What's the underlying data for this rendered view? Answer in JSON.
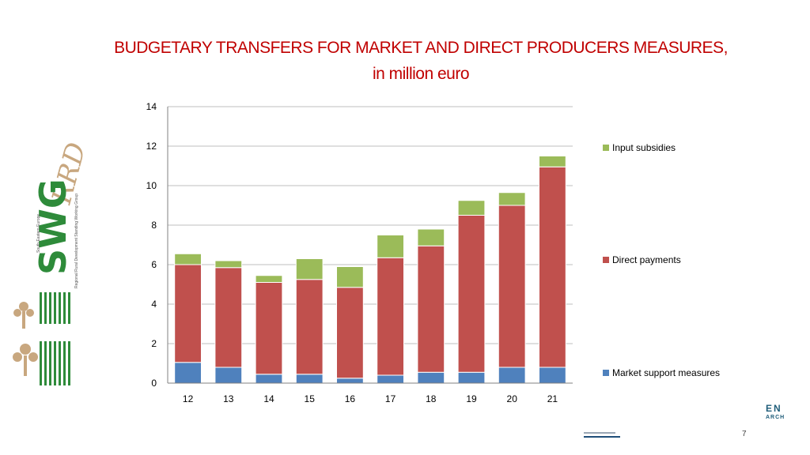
{
  "slide": {
    "title_line1": "BUDGETARY TRANSFERS FOR MARKET AND DIRECT PRODUCERS MEASURES,",
    "title_line2": "in million euro",
    "page_number": "7",
    "corner_logo_line1": "EN",
    "corner_logo_line2": "ARCH",
    "logo_text": {
      "main": "SWG",
      "script": "RRD",
      "vertical_line1": "South Eastern Europe",
      "vertical_line2": "Regional Rural Development Standing Working Group"
    }
  },
  "chart_data": {
    "type": "bar",
    "stacked": true,
    "categories": [
      "12",
      "13",
      "14",
      "15",
      "16",
      "17",
      "18",
      "19",
      "20",
      "21"
    ],
    "series": [
      {
        "name": "Market support measures",
        "color": "#4f81bd",
        "values": [
          1.05,
          0.8,
          0.45,
          0.45,
          0.25,
          0.4,
          0.55,
          0.55,
          0.8,
          0.8
        ]
      },
      {
        "name": "Direct payments",
        "color": "#c0504d",
        "values": [
          4.95,
          5.05,
          4.65,
          4.8,
          4.6,
          5.95,
          6.4,
          7.95,
          8.2,
          10.15
        ]
      },
      {
        "name": "Input subsidies",
        "color": "#9bbb59",
        "values": [
          0.55,
          0.35,
          0.35,
          1.05,
          1.05,
          1.15,
          0.85,
          0.75,
          0.65,
          0.55
        ]
      }
    ],
    "ylim": [
      0,
      14
    ],
    "yticks": [
      "0",
      "2",
      "4",
      "6",
      "8",
      "10",
      "12",
      "14"
    ],
    "xlabel": "",
    "ylabel": "",
    "grid": true,
    "legend_position": "right"
  }
}
